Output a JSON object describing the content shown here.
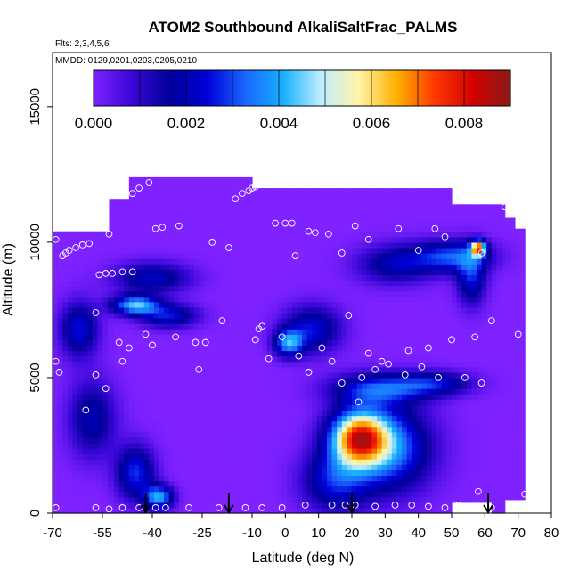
{
  "chart_data": {
    "type": "heatmap",
    "title": "ATOM2 Southbound AlkaliSaltFrac_PALMS",
    "subtitle_flights": "Flts: 2,3,4,5,6",
    "subtitle_dates": "MMDD: 0129,0201,0203,0205,0210",
    "xlabel": "Latitude (deg N)",
    "ylabel": "Altitude (m)",
    "xlim": [
      -70,
      80
    ],
    "ylim": [
      0,
      17000
    ],
    "x_ticks": [
      -70,
      -55,
      -40,
      -25,
      -10,
      0,
      10,
      20,
      30,
      40,
      50,
      60,
      70,
      80
    ],
    "x_tick_labels": [
      "-70",
      "-55",
      "-40",
      "-25",
      "-10",
      "0",
      "10",
      "20",
      "30",
      "40",
      "50",
      "60",
      "70",
      "80"
    ],
    "y_ticks": [
      0,
      5000,
      10000,
      15000
    ],
    "y_tick_labels": [
      "0",
      "5000",
      "10000",
      "15000"
    ],
    "colorbar": {
      "range": [
        0,
        0.009
      ],
      "tick_values": [
        0,
        0.002,
        0.004,
        0.006,
        0.008
      ],
      "tick_labels": [
        "0.000",
        "0.002",
        "0.004",
        "0.006",
        "0.008"
      ],
      "colors": [
        "#7f22ff",
        "#3a08d8",
        "#000099",
        "#0000d8",
        "#1a66ff",
        "#18b0ff",
        "#bfeeff",
        "#fff4a8",
        "#ffb000",
        "#ff3a00",
        "#d40000",
        "#8b1a1a"
      ]
    },
    "background_value": 0.0,
    "hotspots": [
      {
        "lat": 22,
        "alt": 2800,
        "value": 0.0065,
        "lat_sd": 6,
        "alt_sd": 700
      },
      {
        "lat": 31,
        "alt": 2400,
        "value": 0.0035,
        "lat_sd": 9,
        "alt_sd": 1100
      },
      {
        "lat": 15,
        "alt": 1200,
        "value": 0.0025,
        "lat_sd": 7,
        "alt_sd": 800
      },
      {
        "lat": 28,
        "alt": 4600,
        "value": 0.0028,
        "lat_sd": 10,
        "alt_sd": 400
      },
      {
        "lat": 45,
        "alt": 4800,
        "value": 0.0022,
        "lat_sd": 8,
        "alt_sd": 300
      },
      {
        "lat": 58,
        "alt": 9800,
        "value": 0.0062,
        "lat_sd": 1.5,
        "alt_sd": 200
      },
      {
        "lat": 50,
        "alt": 9500,
        "value": 0.003,
        "lat_sd": 8,
        "alt_sd": 400
      },
      {
        "lat": 56,
        "alt": 8700,
        "value": 0.0025,
        "lat_sd": 3,
        "alt_sd": 700
      },
      {
        "lat": 33,
        "alt": 9200,
        "value": 0.002,
        "lat_sd": 8,
        "alt_sd": 500
      },
      {
        "lat": -45,
        "alt": 7700,
        "value": 0.0042,
        "lat_sd": 5,
        "alt_sd": 250
      },
      {
        "lat": -40,
        "alt": 8700,
        "value": 0.0022,
        "lat_sd": 8,
        "alt_sd": 400
      },
      {
        "lat": -35,
        "alt": 7300,
        "value": 0.0025,
        "lat_sd": 6,
        "alt_sd": 300
      },
      {
        "lat": 1,
        "alt": 6300,
        "value": 0.0035,
        "lat_sd": 3,
        "alt_sd": 350
      },
      {
        "lat": 8,
        "alt": 6800,
        "value": 0.0025,
        "lat_sd": 6,
        "alt_sd": 600
      },
      {
        "lat": -62,
        "alt": 6800,
        "value": 0.0025,
        "lat_sd": 4,
        "alt_sd": 700
      },
      {
        "lat": -45,
        "alt": 1500,
        "value": 0.0028,
        "lat_sd": 4,
        "alt_sd": 700
      },
      {
        "lat": -38,
        "alt": 600,
        "value": 0.004,
        "lat_sd": 3,
        "alt_sd": 300
      },
      {
        "lat": -58,
        "alt": 3500,
        "value": 0.002,
        "lat_sd": 5,
        "alt_sd": 1000
      }
    ],
    "sample_points": [
      [
        -69,
        10100
      ],
      [
        -67,
        9500
      ],
      [
        -66,
        9600
      ],
      [
        -65,
        9700
      ],
      [
        -63,
        9800
      ],
      [
        -61,
        9900
      ],
      [
        -59,
        9950
      ],
      [
        -54,
        10600
      ],
      [
        -53,
        10300
      ],
      [
        -46,
        11800
      ],
      [
        -44,
        12000
      ],
      [
        -41,
        12200
      ],
      [
        -39,
        10500
      ],
      [
        -37,
        10550
      ],
      [
        -32,
        10600
      ],
      [
        -22,
        10000
      ],
      [
        -17,
        9800
      ],
      [
        -15,
        11600
      ],
      [
        -13,
        11800
      ],
      [
        -11,
        11900
      ],
      [
        -10,
        12000
      ],
      [
        -9,
        12050
      ],
      [
        -3,
        10700
      ],
      [
        0,
        10700
      ],
      [
        2,
        10700
      ],
      [
        3,
        9500
      ],
      [
        7,
        10400
      ],
      [
        9,
        10350
      ],
      [
        13,
        10300
      ],
      [
        17,
        9600
      ],
      [
        21,
        10600
      ],
      [
        25,
        10100
      ],
      [
        34,
        10500
      ],
      [
        40,
        9700
      ],
      [
        45,
        10500
      ],
      [
        48,
        10200
      ],
      [
        59,
        9600
      ],
      [
        66,
        11300
      ],
      [
        69,
        11300
      ],
      [
        -56,
        8800
      ],
      [
        -54,
        8850
      ],
      [
        -52,
        8850
      ],
      [
        -49,
        8900
      ],
      [
        -46,
        8900
      ],
      [
        -57,
        7400
      ],
      [
        -50,
        6300
      ],
      [
        -47,
        6100
      ],
      [
        -42,
        6600
      ],
      [
        -40,
        6200
      ],
      [
        -33,
        6500
      ],
      [
        -27,
        6300
      ],
      [
        -24,
        6300
      ],
      [
        -19,
        7100
      ],
      [
        -9,
        6400
      ],
      [
        -8,
        6800
      ],
      [
        -7,
        6900
      ],
      [
        -5,
        5700
      ],
      [
        -1,
        6500
      ],
      [
        4,
        5800
      ],
      [
        7,
        5200
      ],
      [
        11,
        6100
      ],
      [
        14,
        5600
      ],
      [
        17,
        4800
      ],
      [
        19,
        7300
      ],
      [
        22,
        4100
      ],
      [
        23,
        5000
      ],
      [
        25,
        5900
      ],
      [
        27,
        5300
      ],
      [
        29,
        5600
      ],
      [
        31,
        5500
      ],
      [
        36,
        5100
      ],
      [
        37,
        6000
      ],
      [
        41,
        5400
      ],
      [
        43,
        6100
      ],
      [
        46,
        5000
      ],
      [
        50,
        6400
      ],
      [
        54,
        5000
      ],
      [
        57,
        6500
      ],
      [
        59,
        4800
      ],
      [
        62,
        7100
      ],
      [
        70,
        6600
      ],
      [
        -69,
        5600
      ],
      [
        -68,
        5200
      ],
      [
        -60,
        3800
      ],
      [
        -57,
        5100
      ],
      [
        -54,
        4600
      ],
      [
        -49,
        5600
      ],
      [
        -26,
        5300
      ],
      [
        -69,
        200
      ],
      [
        -57,
        200
      ],
      [
        -53,
        150
      ],
      [
        -49,
        200
      ],
      [
        -44,
        200
      ],
      [
        -39,
        200
      ],
      [
        -36,
        200
      ],
      [
        -29,
        200
      ],
      [
        -20,
        200
      ],
      [
        -12,
        200
      ],
      [
        -7,
        200
      ],
      [
        -1,
        200
      ],
      [
        6,
        300
      ],
      [
        14,
        300
      ],
      [
        18,
        300
      ],
      [
        21,
        300
      ],
      [
        27,
        250
      ],
      [
        33,
        300
      ],
      [
        38,
        300
      ],
      [
        43,
        250
      ],
      [
        48,
        200
      ],
      [
        52,
        300
      ],
      [
        62,
        200
      ],
      [
        72,
        700
      ],
      [
        58,
        800
      ]
    ],
    "flight_arrows_lat": [
      -42,
      -17,
      20,
      61
    ],
    "bottom_blank_region": {
      "lat_range": [
        50,
        61
      ],
      "alt_range": [
        0,
        400
      ]
    }
  },
  "colors": {
    "background_field": "#7f22ff",
    "plot_border": "#000000",
    "sample_circle": "#ffffff"
  }
}
